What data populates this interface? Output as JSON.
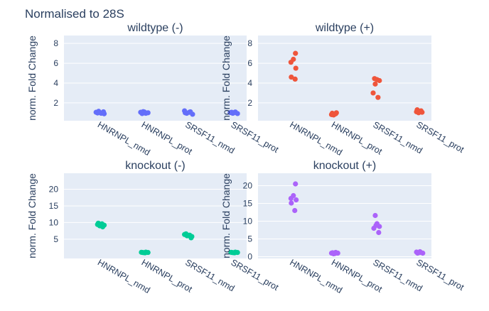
{
  "figure_title": "Normalised to 28S",
  "colors": {
    "plot_bg": "#e5ecf6",
    "grid": "#ffffff",
    "text": "#2a3f5f"
  },
  "chart_data": [
    {
      "type": "scatter",
      "title": "wildtype (-)",
      "ylabel": "norm. Fold Change",
      "xlabel": "",
      "categories": [
        "HNRNPL_nmd",
        "HNRNPL_prot",
        "SRSF11_nmd",
        "SRSF11_prot"
      ],
      "yticks": [
        2,
        4,
        6,
        8
      ],
      "ylim": [
        0.2,
        8.8
      ],
      "grid": true,
      "color": "#636efa",
      "points": [
        {
          "cat": 0,
          "dx": -0.12,
          "y": 1.05
        },
        {
          "cat": 0,
          "dx": -0.05,
          "y": 1.15
        },
        {
          "cat": 0,
          "dx": 0.02,
          "y": 0.95
        },
        {
          "cat": 0,
          "dx": 0.08,
          "y": 1.1
        },
        {
          "cat": 0,
          "dx": 0.1,
          "y": 0.9
        },
        {
          "cat": 0,
          "dx": -0.08,
          "y": 0.98
        },
        {
          "cat": 1,
          "dx": -0.1,
          "y": 1.05
        },
        {
          "cat": 1,
          "dx": -0.03,
          "y": 1.12
        },
        {
          "cat": 1,
          "dx": 0.04,
          "y": 0.95
        },
        {
          "cat": 1,
          "dx": 0.1,
          "y": 1.0
        },
        {
          "cat": 1,
          "dx": 0.0,
          "y": 1.08
        },
        {
          "cat": 1,
          "dx": -0.06,
          "y": 0.92
        },
        {
          "cat": 2,
          "dx": -0.1,
          "y": 1.2
        },
        {
          "cat": 2,
          "dx": -0.04,
          "y": 0.95
        },
        {
          "cat": 2,
          "dx": 0.03,
          "y": 1.05
        },
        {
          "cat": 2,
          "dx": 0.12,
          "y": 0.85
        },
        {
          "cat": 2,
          "dx": 0.06,
          "y": 1.1
        },
        {
          "cat": 2,
          "dx": -0.08,
          "y": 1.0
        },
        {
          "cat": 3,
          "dx": -0.1,
          "y": 1.02
        },
        {
          "cat": 3,
          "dx": -0.03,
          "y": 0.95
        },
        {
          "cat": 3,
          "dx": 0.04,
          "y": 1.08
        },
        {
          "cat": 3,
          "dx": 0.1,
          "y": 0.92
        },
        {
          "cat": 3,
          "dx": 0.0,
          "y": 1.0
        },
        {
          "cat": 3,
          "dx": -0.06,
          "y": 1.05
        }
      ]
    },
    {
      "type": "scatter",
      "title": "wildtype (+)",
      "ylabel": "norm. Fold Change",
      "xlabel": "",
      "categories": [
        "HNRNPL_nmd",
        "HNRNPL_prot",
        "SRSF11_nmd",
        "SRSF11_prot"
      ],
      "yticks": [
        2,
        4,
        6,
        8
      ],
      "ylim": [
        0.2,
        8.8
      ],
      "grid": true,
      "color": "#ef553b",
      "points": [
        {
          "cat": 0,
          "dx": 0.08,
          "y": 7.0
        },
        {
          "cat": 0,
          "dx": 0.02,
          "y": 6.4
        },
        {
          "cat": 0,
          "dx": -0.05,
          "y": 6.1
        },
        {
          "cat": 0,
          "dx": 0.09,
          "y": 5.5
        },
        {
          "cat": 0,
          "dx": -0.04,
          "y": 4.6
        },
        {
          "cat": 0,
          "dx": 0.07,
          "y": 4.4
        },
        {
          "cat": 1,
          "dx": -0.06,
          "y": 0.95
        },
        {
          "cat": 1,
          "dx": 0.0,
          "y": 0.85
        },
        {
          "cat": 1,
          "dx": 0.06,
          "y": 1.0
        },
        {
          "cat": 1,
          "dx": -0.02,
          "y": 0.78
        },
        {
          "cat": 1,
          "dx": 0.04,
          "y": 0.9
        },
        {
          "cat": 1,
          "dx": -0.08,
          "y": 0.82
        },
        {
          "cat": 2,
          "dx": -0.04,
          "y": 4.45
        },
        {
          "cat": 2,
          "dx": 0.1,
          "y": 4.25
        },
        {
          "cat": 2,
          "dx": -0.02,
          "y": 3.9
        },
        {
          "cat": 2,
          "dx": -0.08,
          "y": 3.0
        },
        {
          "cat": 2,
          "dx": 0.06,
          "y": 2.55
        },
        {
          "cat": 2,
          "dx": 0.03,
          "y": 4.35
        },
        {
          "cat": 3,
          "dx": -0.06,
          "y": 1.3
        },
        {
          "cat": 3,
          "dx": 0.02,
          "y": 1.15
        },
        {
          "cat": 3,
          "dx": 0.08,
          "y": 1.05
        },
        {
          "cat": 3,
          "dx": -0.02,
          "y": 1.0
        },
        {
          "cat": 3,
          "dx": 0.05,
          "y": 1.2
        },
        {
          "cat": 3,
          "dx": -0.08,
          "y": 1.1
        }
      ]
    },
    {
      "type": "scatter",
      "title": "knockout (-)",
      "ylabel": "norm. Fold Change",
      "xlabel": "",
      "categories": [
        "HNRNPL_nmd",
        "HNRNPL_prot",
        "SRSF11_nmd",
        "SRSF11_prot"
      ],
      "yticks": [
        5,
        10,
        15,
        20
      ],
      "ylim": [
        -0.8,
        24.8
      ],
      "grid": true,
      "color": "#00cc96",
      "points": [
        {
          "cat": 0,
          "dx": -0.08,
          "y": 9.4
        },
        {
          "cat": 0,
          "dx": -0.02,
          "y": 9.0
        },
        {
          "cat": 0,
          "dx": 0.04,
          "y": 9.6
        },
        {
          "cat": 0,
          "dx": 0.1,
          "y": 9.2
        },
        {
          "cat": 0,
          "dx": 0.06,
          "y": 8.7
        },
        {
          "cat": 0,
          "dx": -0.06,
          "y": 9.8
        },
        {
          "cat": 1,
          "dx": -0.08,
          "y": 1.05
        },
        {
          "cat": 1,
          "dx": -0.02,
          "y": 0.95
        },
        {
          "cat": 1,
          "dx": 0.04,
          "y": 1.1
        },
        {
          "cat": 1,
          "dx": 0.1,
          "y": 1.0
        },
        {
          "cat": 1,
          "dx": 0.02,
          "y": 0.9
        },
        {
          "cat": 1,
          "dx": -0.05,
          "y": 1.0
        },
        {
          "cat": 2,
          "dx": -0.1,
          "y": 6.4
        },
        {
          "cat": 2,
          "dx": -0.03,
          "y": 6.0
        },
        {
          "cat": 2,
          "dx": 0.04,
          "y": 6.2
        },
        {
          "cat": 2,
          "dx": 0.1,
          "y": 5.8
        },
        {
          "cat": 2,
          "dx": 0.08,
          "y": 5.4
        },
        {
          "cat": 2,
          "dx": -0.06,
          "y": 6.6
        },
        {
          "cat": 3,
          "dx": -0.08,
          "y": 1.05
        },
        {
          "cat": 3,
          "dx": -0.02,
          "y": 0.95
        },
        {
          "cat": 3,
          "dx": 0.04,
          "y": 1.1
        },
        {
          "cat": 3,
          "dx": 0.1,
          "y": 1.0
        },
        {
          "cat": 3,
          "dx": 0.02,
          "y": 0.9
        },
        {
          "cat": 3,
          "dx": -0.05,
          "y": 1.0
        }
      ]
    },
    {
      "type": "scatter",
      "title": "knockout (+)",
      "ylabel": "norm. Fold Change",
      "xlabel": "",
      "categories": [
        "HNRNPL_nmd",
        "HNRNPL_prot",
        "SRSF11_nmd",
        "SRSF11_prot"
      ],
      "yticks": [
        0,
        5,
        10,
        15,
        20
      ],
      "ylim": [
        -0.5,
        23.5
      ],
      "grid": true,
      "color": "#ab63fa",
      "points": [
        {
          "cat": 0,
          "dx": 0.08,
          "y": 20.5
        },
        {
          "cat": 0,
          "dx": 0.02,
          "y": 17.2
        },
        {
          "cat": 0,
          "dx": -0.05,
          "y": 16.4
        },
        {
          "cat": 0,
          "dx": 0.1,
          "y": 16.0
        },
        {
          "cat": 0,
          "dx": -0.04,
          "y": 15.1
        },
        {
          "cat": 0,
          "dx": 0.06,
          "y": 13.0
        },
        {
          "cat": 1,
          "dx": -0.08,
          "y": 1.0
        },
        {
          "cat": 1,
          "dx": -0.02,
          "y": 0.8
        },
        {
          "cat": 1,
          "dx": 0.04,
          "y": 1.2
        },
        {
          "cat": 1,
          "dx": 0.1,
          "y": 1.0
        },
        {
          "cat": 1,
          "dx": 0.02,
          "y": 0.9
        },
        {
          "cat": 1,
          "dx": -0.05,
          "y": 1.1
        },
        {
          "cat": 2,
          "dx": -0.02,
          "y": 11.6
        },
        {
          "cat": 2,
          "dx": 0.03,
          "y": 9.3
        },
        {
          "cat": 2,
          "dx": 0.1,
          "y": 8.5
        },
        {
          "cat": 2,
          "dx": -0.06,
          "y": 8.0
        },
        {
          "cat": 2,
          "dx": 0.08,
          "y": 6.8
        },
        {
          "cat": 2,
          "dx": 0.0,
          "y": 8.8
        },
        {
          "cat": 3,
          "dx": -0.08,
          "y": 1.3
        },
        {
          "cat": 3,
          "dx": -0.02,
          "y": 1.1
        },
        {
          "cat": 3,
          "dx": 0.04,
          "y": 1.2
        },
        {
          "cat": 3,
          "dx": 0.1,
          "y": 1.0
        },
        {
          "cat": 3,
          "dx": 0.02,
          "y": 1.4
        },
        {
          "cat": 3,
          "dx": -0.05,
          "y": 1.0
        }
      ]
    }
  ]
}
